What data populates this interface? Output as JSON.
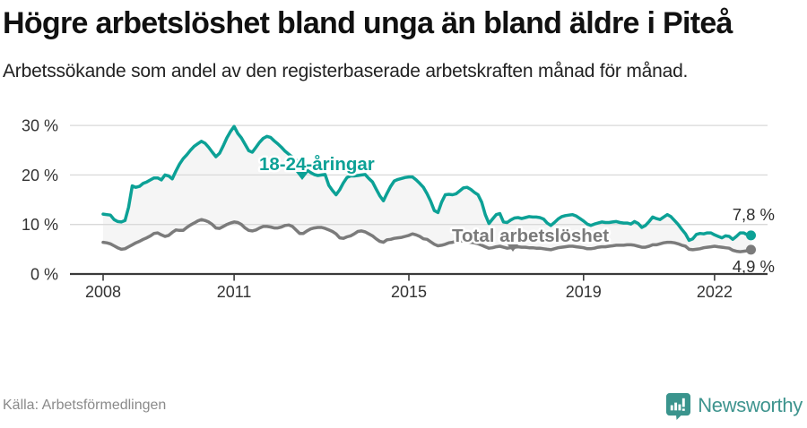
{
  "header": {
    "title": "Högre arbetslöshet bland unga än bland äldre i Piteå",
    "subtitle": "Arbetssökande som andel av den registerbaserade arbetskraften månad för månad."
  },
  "chart_data": {
    "type": "line",
    "title": "Högre arbetslöshet bland unga än bland äldre i Piteå",
    "subtitle": "Arbetssökande som andel av den registerbaserade arbetskraften månad för månad.",
    "x_unit": "month",
    "x_start_year": 2008.0,
    "x_step_years": 0.08333,
    "x_tick_years": [
      2008,
      2011,
      2015,
      2019,
      2022
    ],
    "x_tick_labels": [
      "2008",
      "2011",
      "2015",
      "2019",
      "2022"
    ],
    "y_ticks": [
      30,
      20,
      10,
      0
    ],
    "y_tick_labels": [
      "30 %",
      "20 %",
      "10 %",
      "0 %"
    ],
    "ylim": [
      0,
      32
    ],
    "grid": true,
    "band_fill": "#f5f5f5",
    "axis_color": "#3a3a3a",
    "grid_color": "#d9d9d9",
    "series": [
      {
        "name": "18-24-åringar",
        "color": "#0ca196",
        "end_label": "7,8 %",
        "end_value": 7.8,
        "values": [
          12.1,
          12.0,
          11.9,
          11.0,
          10.6,
          10.5,
          10.8,
          13.5,
          17.8,
          17.5,
          17.7,
          18.3,
          18.6,
          19.0,
          19.4,
          19.4,
          19.0,
          20.0,
          19.8,
          19.2,
          20.8,
          22.2,
          23.3,
          24.1,
          25.0,
          25.8,
          26.3,
          26.8,
          26.4,
          25.6,
          24.6,
          23.7,
          24.4,
          25.9,
          27.5,
          28.8,
          29.8,
          28.4,
          27.5,
          26.2,
          24.9,
          24.6,
          25.6,
          26.6,
          27.4,
          27.8,
          27.6,
          26.9,
          26.3,
          25.6,
          24.8,
          24.2,
          23.6,
          23.0,
          22.4,
          21.7,
          21.0,
          20.5,
          20.1,
          19.9,
          20.0,
          20.1,
          17.9,
          16.9,
          16.0,
          17.0,
          18.4,
          19.5,
          19.8,
          19.8,
          19.9,
          20.0,
          20.1,
          19.3,
          18.6,
          17.2,
          15.8,
          14.8,
          16.3,
          17.7,
          18.8,
          19.1,
          19.3,
          19.5,
          19.6,
          19.6,
          19.0,
          18.3,
          17.5,
          16.2,
          14.7,
          12.8,
          12.4,
          14.5,
          16.0,
          16.1,
          16.0,
          16.2,
          16.8,
          17.4,
          17.5,
          17.1,
          16.5,
          16.0,
          14.5,
          12.0,
          10.2,
          11.1,
          12.0,
          12.2,
          10.5,
          10.4,
          10.9,
          11.3,
          11.4,
          11.2,
          11.4,
          11.6,
          11.5,
          11.5,
          11.4,
          11.1,
          10.3,
          9.8,
          10.4,
          11.1,
          11.6,
          11.8,
          11.9,
          12.0,
          11.7,
          11.2,
          10.7,
          10.1,
          9.8,
          10.1,
          10.3,
          10.5,
          10.4,
          10.4,
          10.5,
          10.6,
          10.4,
          10.3,
          10.3,
          10.1,
          10.6,
          10.2,
          9.4,
          9.8,
          10.6,
          11.5,
          11.2,
          11.0,
          11.5,
          12.0,
          11.6,
          10.8,
          10.0,
          9.0,
          8.1,
          6.8,
          7.1,
          8.0,
          8.2,
          8.1,
          8.3,
          8.3,
          7.9,
          7.6,
          7.3,
          7.7,
          7.6,
          7.0,
          7.6,
          8.3,
          8.3,
          7.9,
          7.8
        ]
      },
      {
        "name": "Total arbetslöshet",
        "color": "#7b7b7b",
        "end_label": "4,9 %",
        "end_value": 4.9,
        "values": [
          6.4,
          6.3,
          6.1,
          5.7,
          5.3,
          5.0,
          5.1,
          5.5,
          5.9,
          6.3,
          6.6,
          7.0,
          7.3,
          7.7,
          8.2,
          8.3,
          7.9,
          7.6,
          7.8,
          8.4,
          8.9,
          8.8,
          8.8,
          9.4,
          9.9,
          10.3,
          10.7,
          11.0,
          10.8,
          10.5,
          10.0,
          9.3,
          9.2,
          9.6,
          10.0,
          10.3,
          10.5,
          10.4,
          10.0,
          9.3,
          8.8,
          8.7,
          8.9,
          9.3,
          9.6,
          9.6,
          9.5,
          9.3,
          9.3,
          9.5,
          9.8,
          9.9,
          9.6,
          8.9,
          8.2,
          8.2,
          8.7,
          9.1,
          9.3,
          9.4,
          9.4,
          9.2,
          8.9,
          8.6,
          8.1,
          7.3,
          7.2,
          7.5,
          7.7,
          8.1,
          8.6,
          8.7,
          8.5,
          8.1,
          7.7,
          7.1,
          6.6,
          6.4,
          6.9,
          7.0,
          7.2,
          7.3,
          7.4,
          7.6,
          7.8,
          8.1,
          7.9,
          7.6,
          7.1,
          7.0,
          6.5,
          6.0,
          5.7,
          5.8,
          6.0,
          6.3,
          6.4,
          6.6,
          6.7,
          6.7,
          6.5,
          6.4,
          6.3,
          6.1,
          5.8,
          5.5,
          5.2,
          5.3,
          5.5,
          5.6,
          5.4,
          5.2,
          5.3,
          5.4,
          5.5,
          5.4,
          5.4,
          5.3,
          5.3,
          5.2,
          5.2,
          5.1,
          5.0,
          4.9,
          5.1,
          5.3,
          5.4,
          5.5,
          5.6,
          5.6,
          5.5,
          5.4,
          5.3,
          5.1,
          5.1,
          5.2,
          5.4,
          5.5,
          5.5,
          5.6,
          5.7,
          5.8,
          5.8,
          5.8,
          5.9,
          5.9,
          5.8,
          5.6,
          5.4,
          5.4,
          5.6,
          5.9,
          5.9,
          6.1,
          6.3,
          6.4,
          6.4,
          6.3,
          6.1,
          5.8,
          5.6,
          5.0,
          4.9,
          5.0,
          5.1,
          5.3,
          5.4,
          5.5,
          5.6,
          5.5,
          5.4,
          5.3,
          5.2,
          4.8,
          4.6,
          4.5,
          4.6,
          4.7,
          4.9
        ]
      }
    ]
  },
  "footer": {
    "source": "Källa: Arbetsförmedlingen",
    "brand": "Newsworthy"
  }
}
